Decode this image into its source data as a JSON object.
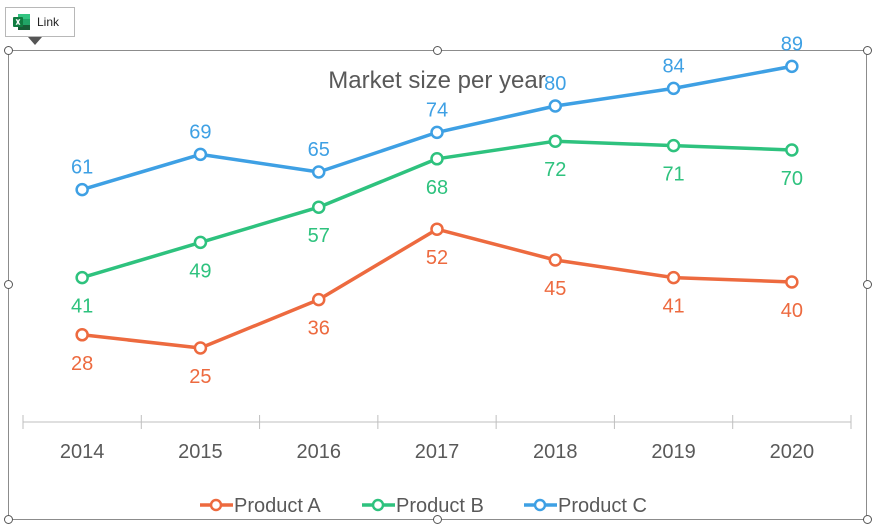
{
  "link_badge": {
    "label": "Link",
    "icon": "excel-icon"
  },
  "chart_data": {
    "type": "line",
    "title": "Market size per year",
    "xlabel": "",
    "ylabel": "",
    "ylim": [
      0,
      100
    ],
    "grid": false,
    "legend_position": "bottom",
    "categories": [
      "2014",
      "2015",
      "2016",
      "2017",
      "2018",
      "2019",
      "2020"
    ],
    "series": [
      {
        "name": "Product A",
        "color": "#ED6A3F",
        "label_position": "below",
        "values": [
          28,
          25,
          36,
          52,
          45,
          41,
          40
        ]
      },
      {
        "name": "Product B",
        "color": "#2EC27E",
        "label_position": "below",
        "values": [
          41,
          49,
          57,
          68,
          72,
          71,
          70
        ]
      },
      {
        "name": "Product C",
        "color": "#3EA0E4",
        "label_position": "above",
        "values": [
          61,
          69,
          65,
          74,
          80,
          84,
          89
        ]
      }
    ]
  }
}
